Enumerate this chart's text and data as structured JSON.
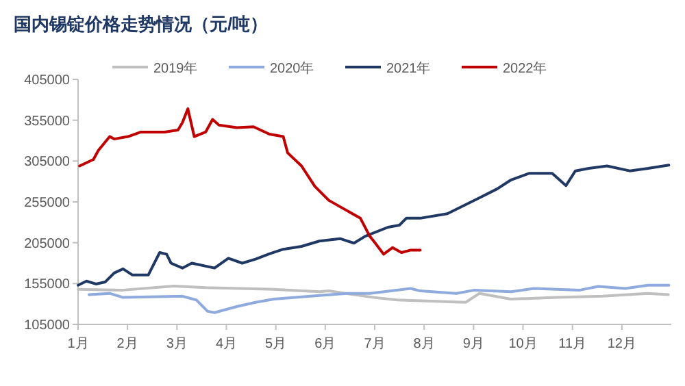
{
  "chart_data": {
    "type": "line",
    "title": "国内锡锭价格走势情况（元/吨）",
    "xlim": [
      1,
      13
    ],
    "xticks": [
      {
        "value": 1,
        "label": "1月"
      },
      {
        "value": 2,
        "label": "2月"
      },
      {
        "value": 3,
        "label": "3月"
      },
      {
        "value": 4,
        "label": "4月"
      },
      {
        "value": 5,
        "label": "5月"
      },
      {
        "value": 6,
        "label": "6月"
      },
      {
        "value": 7,
        "label": "7月"
      },
      {
        "value": 8,
        "label": "8月"
      },
      {
        "value": 9,
        "label": "9月"
      },
      {
        "value": 10,
        "label": "10月"
      },
      {
        "value": 11,
        "label": "11月"
      },
      {
        "value": 12,
        "label": "12月"
      }
    ],
    "ylim": [
      105000,
      405000
    ],
    "yticks": [
      105000,
      155000,
      205000,
      255000,
      305000,
      355000,
      405000
    ],
    "grid": false,
    "legend": "top",
    "marker": "none",
    "line_style": "solid",
    "series": [
      {
        "name": "2019年",
        "color": "#bfbfbf",
        "x": [
          1.0,
          1.91,
          2.93,
          3.58,
          4.96,
          5.88,
          6.07,
          6.98,
          7.45,
          8.84,
          9.12,
          9.75,
          10.69,
          11.61,
          12.52,
          12.94
        ],
        "values": [
          148000,
          147000,
          152000,
          150000,
          148000,
          145000,
          146000,
          138000,
          135000,
          132000,
          143000,
          136000,
          138000,
          139500,
          143000,
          141500
        ]
      },
      {
        "name": "2020年",
        "color": "#8faadc",
        "x": [
          1.22,
          1.64,
          1.91,
          3.11,
          3.39,
          3.62,
          3.76,
          4.22,
          4.59,
          4.96,
          5.88,
          6.44,
          6.9,
          7.73,
          7.92,
          8.65,
          9.02,
          9.76,
          10.22,
          11.15,
          11.52,
          12.07,
          12.53,
          12.95
        ],
        "values": [
          141500,
          143000,
          138000,
          139500,
          135000,
          121000,
          119500,
          127000,
          132000,
          136000,
          140500,
          143000,
          143000,
          149000,
          146000,
          143000,
          147000,
          145000,
          149000,
          147000,
          151500,
          149000,
          153000,
          153000
        ]
      },
      {
        "name": "2021年",
        "color": "#203864",
        "x": [
          1.0,
          1.17,
          1.36,
          1.55,
          1.73,
          1.91,
          2.1,
          2.42,
          2.65,
          2.79,
          2.88,
          3.11,
          3.3,
          3.76,
          4.04,
          4.32,
          4.59,
          4.87,
          5.15,
          5.52,
          5.88,
          6.3,
          6.58,
          6.81,
          7.27,
          7.5,
          7.64,
          7.92,
          8.47,
          9.12,
          9.48,
          9.76,
          10.13,
          10.59,
          10.87,
          11.06,
          11.33,
          11.7,
          12.16,
          12.53,
          12.95
        ],
        "values": [
          153000,
          158000,
          154500,
          157000,
          168000,
          173000,
          165500,
          165500,
          193000,
          191000,
          180000,
          174000,
          180000,
          174000,
          186000,
          180000,
          185000,
          191500,
          197000,
          200500,
          207000,
          210000,
          204500,
          213000,
          224000,
          226500,
          235000,
          235000,
          240500,
          260000,
          271000,
          282000,
          290000,
          290000,
          275000,
          293000,
          296000,
          299000,
          293000,
          296000,
          300000
        ]
      },
      {
        "name": "2022年",
        "color": "#c00000",
        "x": [
          1.03,
          1.31,
          1.41,
          1.64,
          1.73,
          2.01,
          2.27,
          2.75,
          3.02,
          3.11,
          3.22,
          3.35,
          3.58,
          3.72,
          3.85,
          4.21,
          4.55,
          4.87,
          5.15,
          5.24,
          5.52,
          5.79,
          6.07,
          6.71,
          6.9,
          6.98,
          7.18,
          7.36,
          7.54,
          7.73,
          7.92
        ],
        "values": [
          299000,
          307000,
          318000,
          335000,
          332000,
          335000,
          340500,
          340500,
          343000,
          352000,
          369000,
          335000,
          340500,
          356000,
          349000,
          346000,
          347000,
          338000,
          335000,
          315000,
          299000,
          274000,
          257000,
          235000,
          213000,
          207000,
          191000,
          199000,
          193000,
          196000,
          196000
        ]
      }
    ]
  }
}
